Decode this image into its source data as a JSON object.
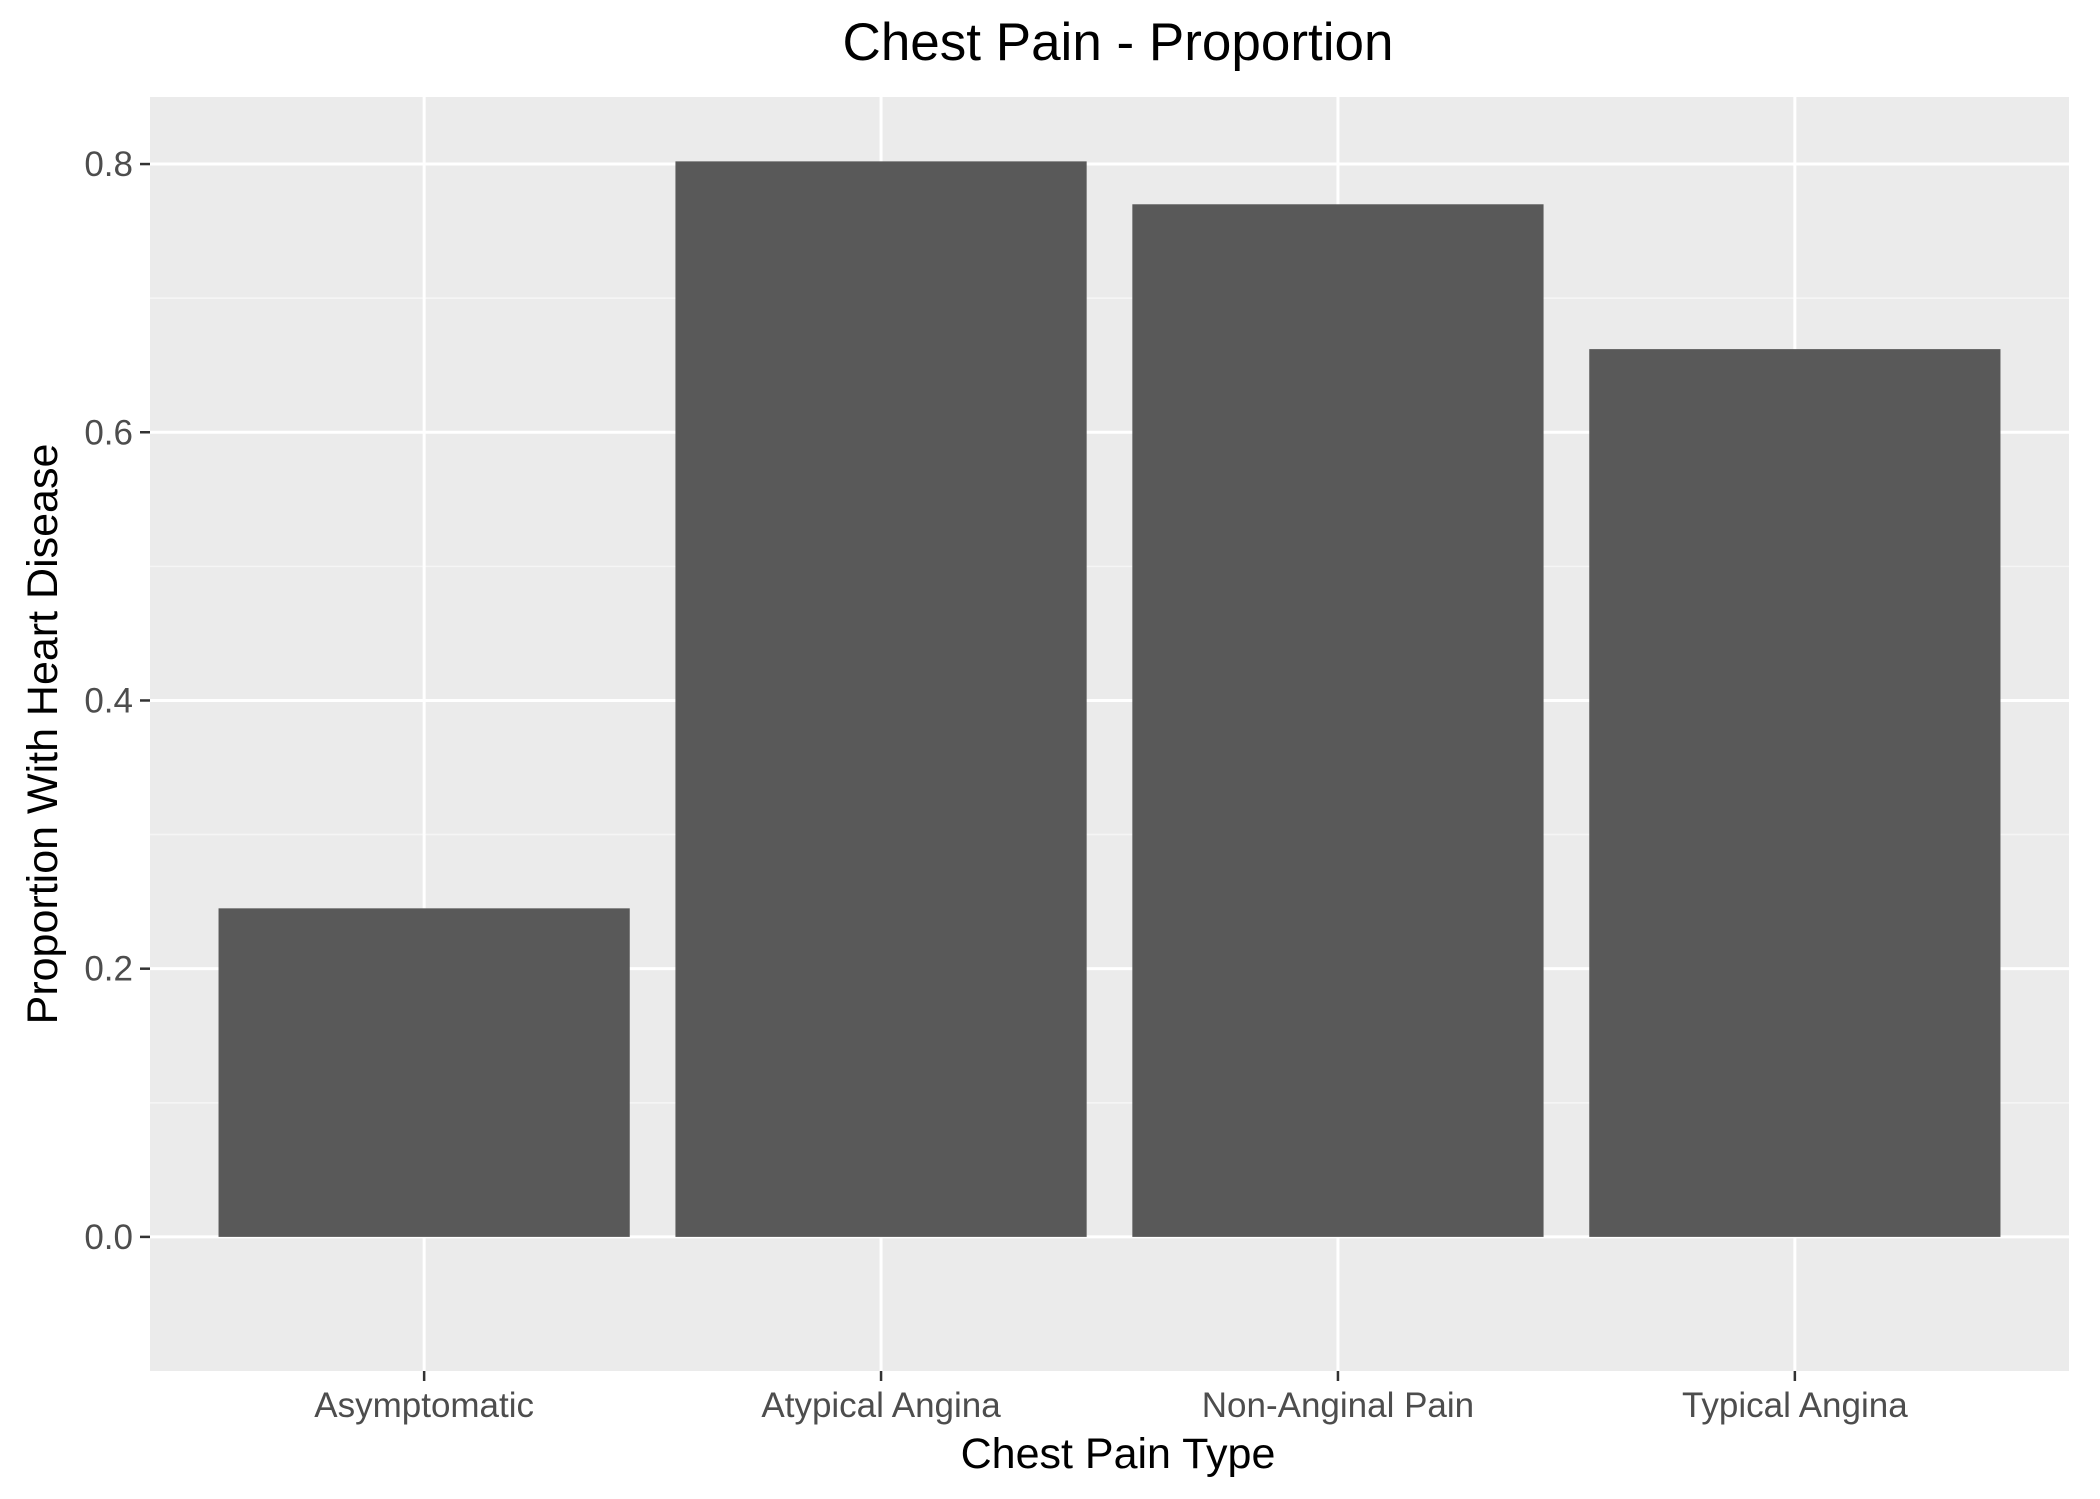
{
  "chart_data": {
    "type": "bar",
    "title": "Chest Pain - Proportion",
    "xlabel": "Chest Pain Type",
    "ylabel": "Proportion With Heart Disease",
    "categories": [
      "Asymptomatic",
      "Atypical Angina",
      "Non-Anginal Pain",
      "Typical Angina"
    ],
    "values": [
      0.245,
      0.802,
      0.77,
      0.662
    ],
    "ylim": [
      -0.1,
      0.85
    ],
    "yticks": [
      0.0,
      0.2,
      0.4,
      0.6,
      0.8
    ],
    "ytick_labels": [
      "0.0",
      "0.2",
      "0.4",
      "0.6",
      "0.8"
    ],
    "grid": true,
    "legend": "none",
    "colors": {
      "bar": "#595959",
      "panel_background": "#ebebeb",
      "grid_major": "#ffffff",
      "grid_minor": "#f5f5f5",
      "tick": "#333333",
      "tick_text": "#4d4d4d",
      "text": "#000000"
    }
  }
}
